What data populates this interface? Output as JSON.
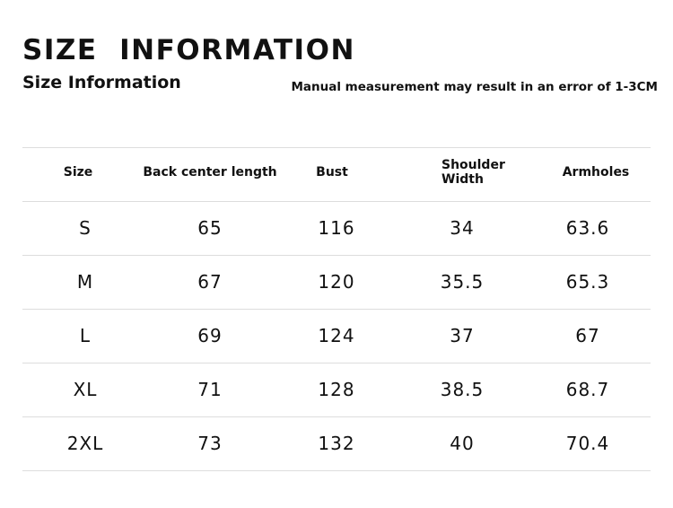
{
  "header": {
    "title": "SIZE  INFORMATION",
    "subtitle": "Size Information",
    "note": "Manual measurement may result in an error of 1-3CM"
  },
  "table": {
    "columns": [
      "Size",
      "Back center length",
      "Bust",
      "Shoulder Width",
      "Armholes"
    ],
    "rows": [
      [
        "S",
        "65",
        "116",
        "34",
        "63.6"
      ],
      [
        "M",
        "67",
        "120",
        "35.5",
        "65.3"
      ],
      [
        "L",
        "69",
        "124",
        "37",
        "67"
      ],
      [
        "XL",
        "71",
        "128",
        "38.5",
        "68.7"
      ],
      [
        "2XL",
        "73",
        "132",
        "40",
        "70.4"
      ]
    ]
  }
}
